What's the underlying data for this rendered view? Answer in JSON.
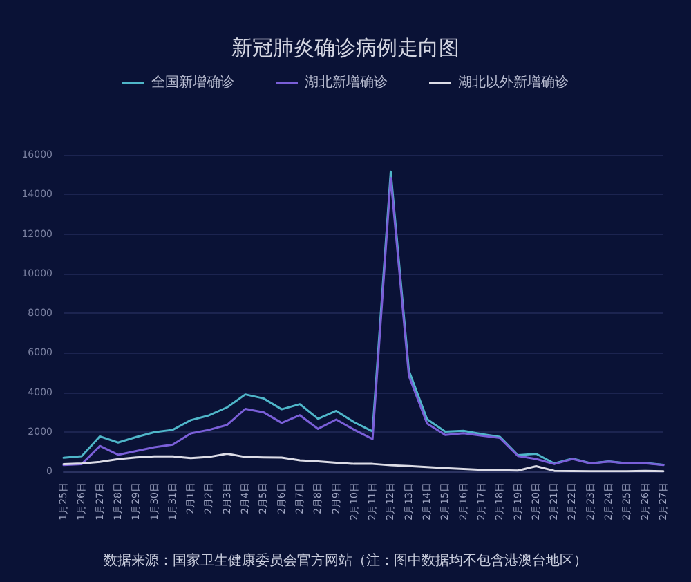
{
  "chart_data": {
    "type": "line",
    "title": "新冠肺炎确诊病例走向图",
    "categories": [
      "1月25日",
      "1月26日",
      "1月27日",
      "1月28日",
      "1月29日",
      "1月30日",
      "1月31日",
      "2月1日",
      "2月2日",
      "2月3日",
      "2月4日",
      "2月5日",
      "2月6日",
      "2月7日",
      "2月8日",
      "2月9日",
      "2月10日",
      "2月11日",
      "2月12日",
      "2月13日",
      "2月14日",
      "2月15日",
      "2月16日",
      "2月17日",
      "2月18日",
      "2月19日",
      "2月20日",
      "2月21日",
      "2月22日",
      "2月23日",
      "2月24日",
      "2月25日",
      "2月26日",
      "2月27日"
    ],
    "series": [
      {
        "name": "全国新增确诊",
        "color": "#4fb6c9",
        "values": [
          690,
          770,
          1770,
          1460,
          1740,
          1980,
          2100,
          2590,
          2830,
          3240,
          3890,
          3690,
          3140,
          3400,
          2660,
          3060,
          2480,
          2020,
          15150,
          5090,
          2640,
          2010,
          2050,
          1890,
          1750,
          820,
          890,
          400,
          650,
          410,
          510,
          410,
          430,
          330
        ]
      },
      {
        "name": "湖北新增确诊",
        "color": "#7a5fd8",
        "values": [
          320,
          370,
          1290,
          840,
          1030,
          1220,
          1350,
          1920,
          2100,
          2350,
          3160,
          2990,
          2450,
          2840,
          2150,
          2620,
          2100,
          1640,
          14840,
          4820,
          2420,
          1840,
          1930,
          1810,
          1690,
          780,
          630,
          370,
          630,
          400,
          500,
          400,
          410,
          320
        ]
      },
      {
        "name": "湖北以外新增确诊",
        "color": "#dcdce6",
        "values": [
          370,
          400,
          480,
          620,
          710,
          760,
          760,
          670,
          730,
          890,
          730,
          710,
          700,
          560,
          510,
          440,
          380,
          380,
          310,
          270,
          220,
          170,
          120,
          80,
          60,
          45,
          260,
          30,
          20,
          10,
          10,
          5,
          25,
          10
        ]
      }
    ],
    "ylim": [
      0,
      16000
    ],
    "yticks": [
      0,
      2000,
      4000,
      6000,
      8000,
      10000,
      12000,
      14000,
      16000
    ],
    "grid": "y",
    "legend": "top",
    "marker": "none",
    "line_style": "solid",
    "annotations": [
      "数据来源：国家卫生健康委员会官方网站（注：图中数据均不包含港澳台地区）"
    ]
  }
}
